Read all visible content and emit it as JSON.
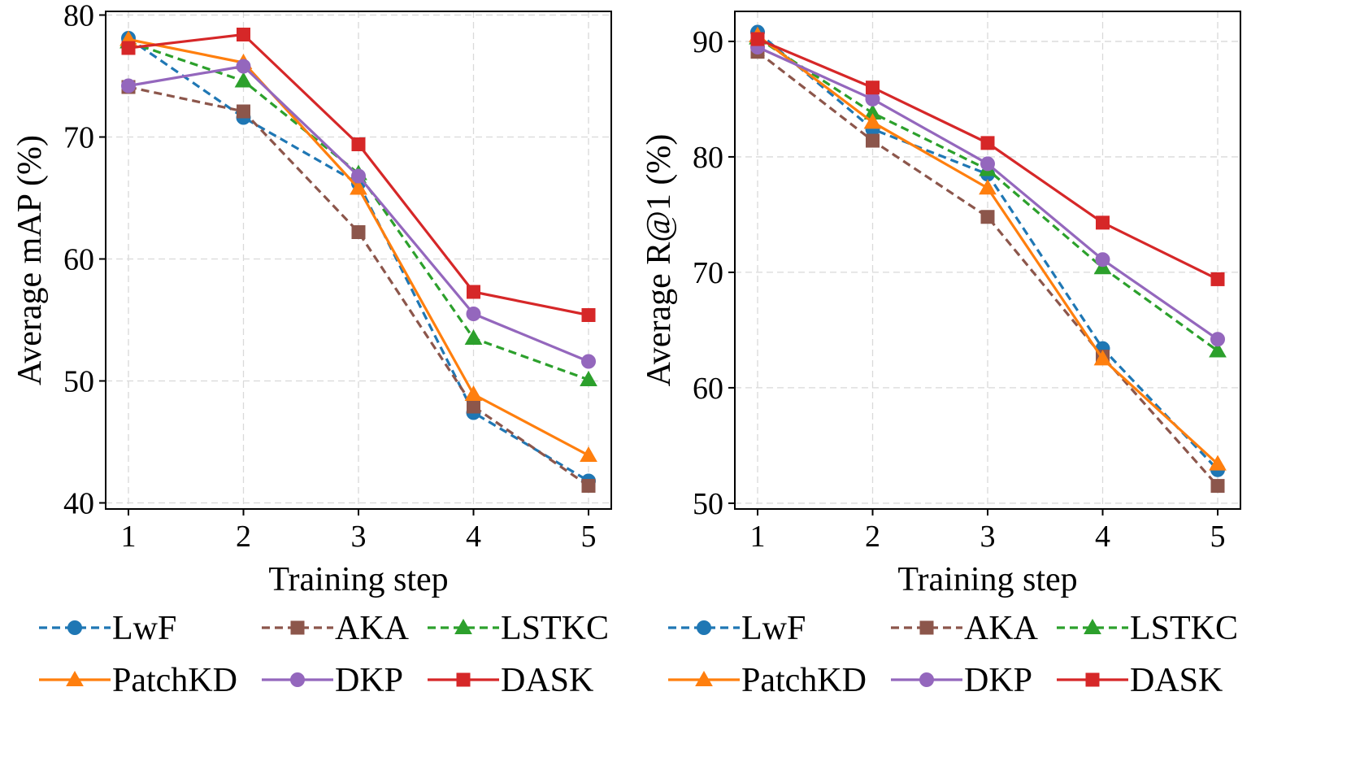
{
  "chart_data": [
    {
      "type": "line",
      "title": "",
      "xlabel": "Training step",
      "ylabel": "Average mAP (%)",
      "x": [
        1,
        2,
        3,
        4,
        5
      ],
      "xticks": [
        "1",
        "2",
        "3",
        "4",
        "5"
      ],
      "ylim": [
        39.5,
        80.3
      ],
      "yticks": [
        40,
        50,
        60,
        70,
        80
      ],
      "grid": true,
      "legend_position": "bottom",
      "series": [
        {
          "name": "LwF",
          "color": "#1f77b4",
          "marker": "circle",
          "dashed": true,
          "values": [
            78.1,
            71.6,
            66.2,
            47.4,
            41.8
          ]
        },
        {
          "name": "AKA",
          "color": "#8c564b",
          "marker": "square",
          "dashed": true,
          "values": [
            74.1,
            72.1,
            62.2,
            47.9,
            41.4
          ]
        },
        {
          "name": "LSTKC",
          "color": "#2ca02c",
          "marker": "triangle",
          "dashed": true,
          "values": [
            77.8,
            74.6,
            67.0,
            53.5,
            50.1
          ]
        },
        {
          "name": "PatchKD",
          "color": "#ff7f0e",
          "marker": "triangle",
          "dashed": false,
          "values": [
            78.0,
            76.1,
            65.8,
            48.9,
            43.9
          ]
        },
        {
          "name": "DKP",
          "color": "#9467bd",
          "marker": "circle",
          "dashed": false,
          "values": [
            74.2,
            75.8,
            66.8,
            55.5,
            51.6
          ]
        },
        {
          "name": "DASK",
          "color": "#d62728",
          "marker": "square",
          "dashed": false,
          "values": [
            77.3,
            78.4,
            69.4,
            57.3,
            55.4
          ]
        }
      ]
    },
    {
      "type": "line",
      "title": "",
      "xlabel": "Training step",
      "ylabel": "Average R@1 (%)",
      "x": [
        1,
        2,
        3,
        4,
        5
      ],
      "xticks": [
        "1",
        "2",
        "3",
        "4",
        "5"
      ],
      "ylim": [
        49.5,
        92.6
      ],
      "yticks": [
        50,
        60,
        70,
        80,
        90
      ],
      "grid": true,
      "legend_position": "bottom",
      "series": [
        {
          "name": "LwF",
          "color": "#1f77b4",
          "marker": "circle",
          "dashed": true,
          "values": [
            90.8,
            82.4,
            78.5,
            63.4,
            52.9
          ]
        },
        {
          "name": "AKA",
          "color": "#8c564b",
          "marker": "square",
          "dashed": true,
          "values": [
            89.1,
            81.4,
            74.8,
            62.7,
            51.5
          ]
        },
        {
          "name": "LSTKC",
          "color": "#2ca02c",
          "marker": "triangle",
          "dashed": true,
          "values": [
            90.3,
            83.8,
            78.9,
            70.4,
            63.2
          ]
        },
        {
          "name": "PatchKD",
          "color": "#ff7f0e",
          "marker": "triangle",
          "dashed": false,
          "values": [
            90.5,
            83.0,
            77.3,
            62.5,
            53.4
          ]
        },
        {
          "name": "DKP",
          "color": "#9467bd",
          "marker": "circle",
          "dashed": false,
          "values": [
            89.5,
            85.0,
            79.4,
            71.1,
            64.2
          ]
        },
        {
          "name": "DASK",
          "color": "#d62728",
          "marker": "square",
          "dashed": false,
          "values": [
            90.2,
            86.0,
            81.2,
            74.3,
            69.4
          ]
        }
      ]
    }
  ]
}
